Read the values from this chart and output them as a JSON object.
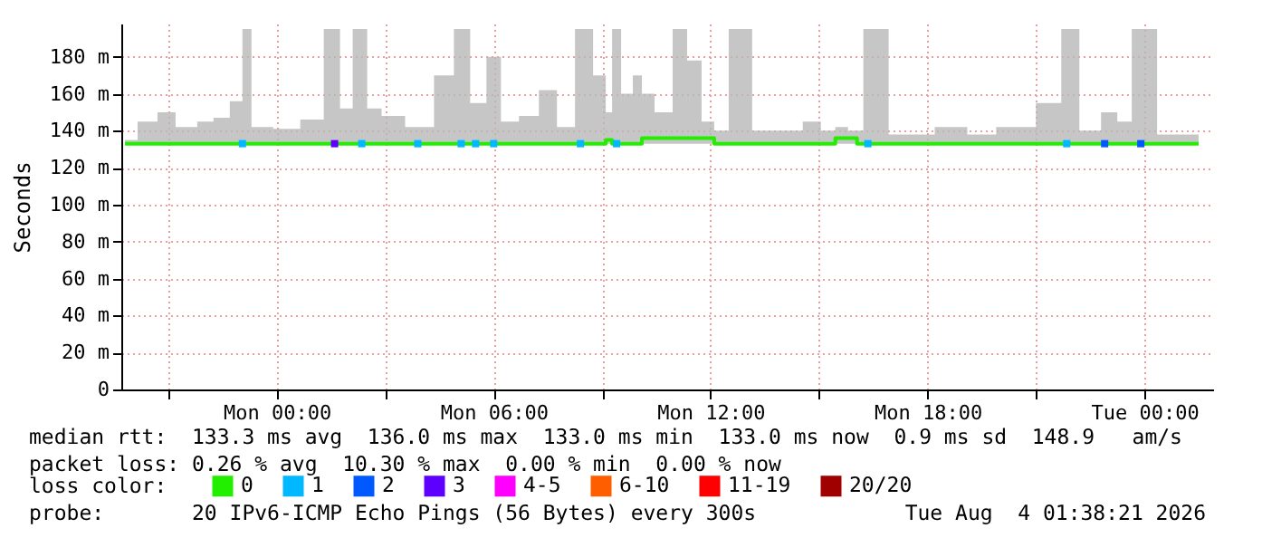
{
  "chart_data": {
    "type": "line",
    "ylabel": "Seconds",
    "xlim": [
      "2026-08-02T19:42",
      "2026-08-04T01:54"
    ],
    "ylim": [
      0,
      198
    ],
    "xticks": [
      {
        "value": "2026-08-02T21:00",
        "label": null
      },
      {
        "value": "2026-08-03T00:00",
        "label": "Mon 00:00"
      },
      {
        "value": "2026-08-03T03:00",
        "label": null
      },
      {
        "value": "2026-08-03T06:00",
        "label": "Mon 06:00"
      },
      {
        "value": "2026-08-03T09:00",
        "label": null
      },
      {
        "value": "2026-08-03T12:00",
        "label": "Mon 12:00"
      },
      {
        "value": "2026-08-03T15:00",
        "label": null
      },
      {
        "value": "2026-08-03T18:00",
        "label": "Mon 18:00"
      },
      {
        "value": "2026-08-03T21:00",
        "label": null
      },
      {
        "value": "2026-08-04T00:00",
        "label": "Tue 00:00"
      }
    ],
    "yticks": [
      0,
      {
        "value": 20,
        "label": "20 m"
      },
      {
        "value": 40,
        "label": "40 m"
      },
      {
        "value": 60,
        "label": "60 m"
      },
      {
        "value": 80,
        "label": "80 m"
      },
      {
        "value": 100,
        "label": "100 m"
      },
      {
        "value": 120,
        "label": "120 m"
      },
      {
        "value": 140,
        "label": "140 m"
      },
      {
        "value": 160,
        "label": "160 m"
      },
      {
        "value": 180,
        "label": "180 m"
      }
    ],
    "grid": true,
    "legend": "bottom",
    "legend_title": "loss color:",
    "series": [
      {
        "name": "0",
        "color": "#22ee00",
        "x": [
          "2026-08-02T19:48",
          "2026-08-02T20:30",
          "2026-08-02T20:54",
          "2026-08-02T21:30",
          "2026-08-02T22:06",
          "2026-08-02T22:24",
          "2026-08-02T23:00",
          "2026-08-02T23:06",
          "2026-08-02T23:30",
          "2026-08-03T00:18",
          "2026-08-03T01:00",
          "2026-08-03T01:36",
          "2026-08-03T01:54",
          "2026-08-03T02:18",
          "2026-08-03T02:42",
          "2026-08-03T03:06",
          "2026-08-03T04:00",
          "2026-08-03T04:42",
          "2026-08-03T05:06",
          "2026-08-03T05:36",
          "2026-08-03T06:00",
          "2026-08-03T06:24",
          "2026-08-03T07:00",
          "2026-08-03T07:30",
          "2026-08-03T08:00",
          "2026-08-03T08:30",
          "2026-08-03T09:00",
          "2026-08-03T09:12",
          "2026-08-03T09:21",
          "2026-08-03T09:42",
          "2026-08-03T10:00",
          "2026-08-03T10:12",
          "2026-08-03T10:42",
          "2026-08-03T11:12",
          "2026-08-03T11:30",
          "2026-08-03T12:00",
          "2026-08-03T12:12",
          "2026-08-03T12:48",
          "2026-08-03T13:30",
          "2026-08-03T14:18",
          "2026-08-03T14:48",
          "2026-08-03T15:18",
          "2026-08-03T15:36",
          "2026-08-03T16:00",
          "2026-08-03T16:06",
          "2026-08-03T16:21",
          "2026-08-03T17:30",
          "2026-08-03T18:54",
          "2026-08-03T19:18",
          "2026-08-03T20:30",
          "2026-08-03T21:30",
          "2026-08-03T21:54",
          "2026-08-03T22:30",
          "2026-08-03T23:06",
          "2026-08-03T23:24",
          "2026-08-03T23:54",
          "2026-08-04T00:48",
          "2026-08-04T01:30"
        ],
        "values": [
          133,
          133,
          133,
          133,
          133,
          133,
          133,
          133,
          133,
          133,
          133,
          133,
          133,
          133,
          133,
          133,
          133,
          133,
          133,
          133,
          133,
          133,
          133,
          133,
          133,
          133,
          133,
          135,
          133,
          133,
          133,
          136,
          136,
          136,
          136,
          136,
          133,
          133,
          133,
          133,
          133,
          133,
          136,
          136,
          133,
          133,
          133,
          133,
          133,
          133,
          133,
          133,
          133,
          133,
          133,
          133,
          133,
          133
        ],
        "lower": [
          133,
          133,
          133,
          133,
          133,
          133,
          133,
          133,
          133,
          133,
          133,
          133,
          133,
          133,
          133,
          133,
          133,
          133,
          133,
          133,
          133,
          133,
          133,
          133,
          133,
          133,
          133,
          133,
          133,
          133,
          133,
          133,
          133,
          133,
          133,
          133,
          133,
          133,
          133,
          133,
          133,
          133,
          133,
          133,
          133,
          133,
          133,
          133,
          133,
          133,
          133,
          133,
          133,
          133,
          133,
          133,
          133,
          133
        ],
        "upper": [
          135,
          145,
          150,
          142,
          145,
          147,
          156,
          195,
          142,
          141,
          146,
          195,
          152,
          195,
          152,
          148,
          142,
          170,
          195,
          155,
          180,
          145,
          148,
          162,
          142,
          195,
          170,
          150,
          195,
          160,
          170,
          160,
          150,
          195,
          178,
          145,
          140,
          195,
          140,
          140,
          145,
          140,
          142,
          140,
          140,
          195,
          138,
          142,
          138,
          142,
          155,
          195,
          140,
          150,
          145,
          195,
          138,
          138
        ]
      },
      {
        "name": "1",
        "color": "#00b8ff",
        "type": "scatter",
        "x": [
          "2026-08-02T23:03",
          "2026-08-03T02:21",
          "2026-08-03T03:54",
          "2026-08-03T05:06",
          "2026-08-03T05:30",
          "2026-08-03T06:00",
          "2026-08-03T08:24",
          "2026-08-03T09:24",
          "2026-08-03T16:21",
          "2026-08-03T21:51"
        ],
        "values": [
          133,
          133,
          133,
          133,
          133,
          133,
          133,
          133,
          133,
          133
        ]
      },
      {
        "name": "2",
        "color": "#0059ff",
        "type": "scatter",
        "x": [
          "2026-08-03T22:54",
          "2026-08-03T23:54"
        ],
        "values": [
          133,
          133
        ]
      },
      {
        "name": "3",
        "color": "#5e00ff",
        "type": "scatter",
        "x": [
          "2026-08-03T01:36"
        ],
        "values": [
          133
        ]
      },
      {
        "name": "4-5",
        "color": "#ff00ff",
        "type": "scatter"
      },
      {
        "name": "6-10",
        "color": "#ff5e00",
        "type": "scatter"
      },
      {
        "name": "11-19",
        "color": "#ff0000",
        "type": "scatter"
      },
      {
        "name": "20/20",
        "color": "#a10000",
        "type": "scatter"
      }
    ],
    "annotations": [
      "median rtt:  133.3 ms avg  136.0 ms max  133.0 ms min  133.0 ms now  0.9 ms sd  148.9   am/s",
      "packet loss: 0.26 % avg  10.30 % max  0.00 % min  0.00 % now",
      "probe:       20 IPv6-ICMP Echo Pings (56 Bytes) every 300s",
      "Tue Aug  4 01:38:21 2026"
    ]
  }
}
